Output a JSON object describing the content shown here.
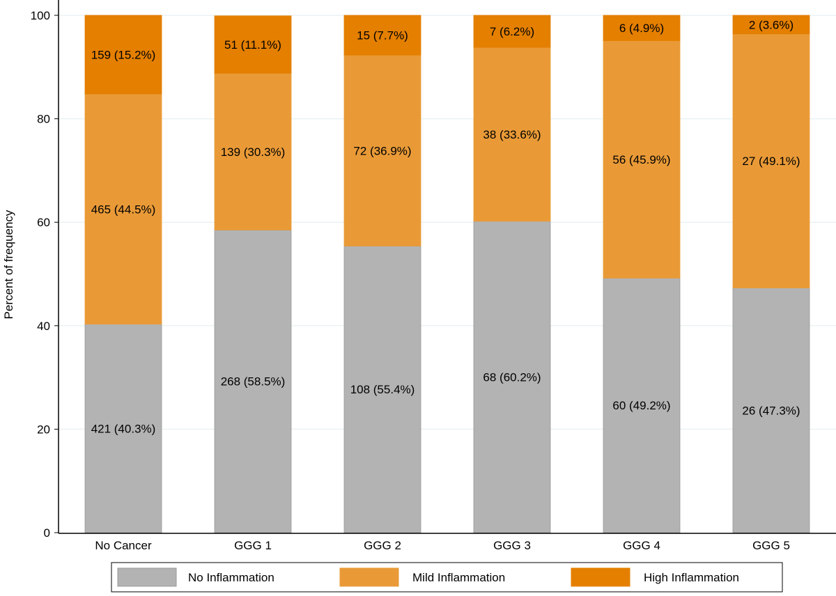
{
  "chart_data": {
    "type": "bar",
    "stacked": true,
    "title": "",
    "xlabel": "",
    "ylabel": "Percent of frequency",
    "ylim": [
      0,
      100
    ],
    "yticks": [
      0,
      20,
      40,
      60,
      80,
      100
    ],
    "grid": true,
    "legend_placement": "bottom",
    "categories": [
      "No Cancer",
      "GGG 1",
      "GGG 2",
      "GGG 3",
      "GGG 4",
      "GGG 5"
    ],
    "series": [
      {
        "name": "No Inflammation",
        "color": "#b3b3b3",
        "values": [
          40.3,
          58.5,
          55.4,
          60.2,
          49.2,
          47.3
        ],
        "labels": [
          "421 (40.3%)",
          "268 (58.5%)",
          "108 (55.4%)",
          "68 (60.2%)",
          "60 (49.2%)",
          "26 (47.3%)"
        ]
      },
      {
        "name": "Mild Inflammation",
        "color": "#e99a37",
        "values": [
          44.5,
          30.3,
          36.9,
          33.6,
          45.9,
          49.1
        ],
        "labels": [
          "465 (44.5%)",
          "139 (30.3%)",
          "72 (36.9%)",
          "38 (33.6%)",
          "56 (45.9%)",
          "27 (49.1%)"
        ]
      },
      {
        "name": "High Inflammation",
        "color": "#e47f00",
        "values": [
          15.2,
          11.1,
          7.7,
          6.2,
          4.9,
          3.6
        ],
        "labels": [
          "159 (15.2%)",
          "51 (11.1%)",
          "15 (7.7%)",
          "7 (6.2%)",
          "6 (4.9%)",
          "2 (3.6%)"
        ]
      }
    ]
  }
}
